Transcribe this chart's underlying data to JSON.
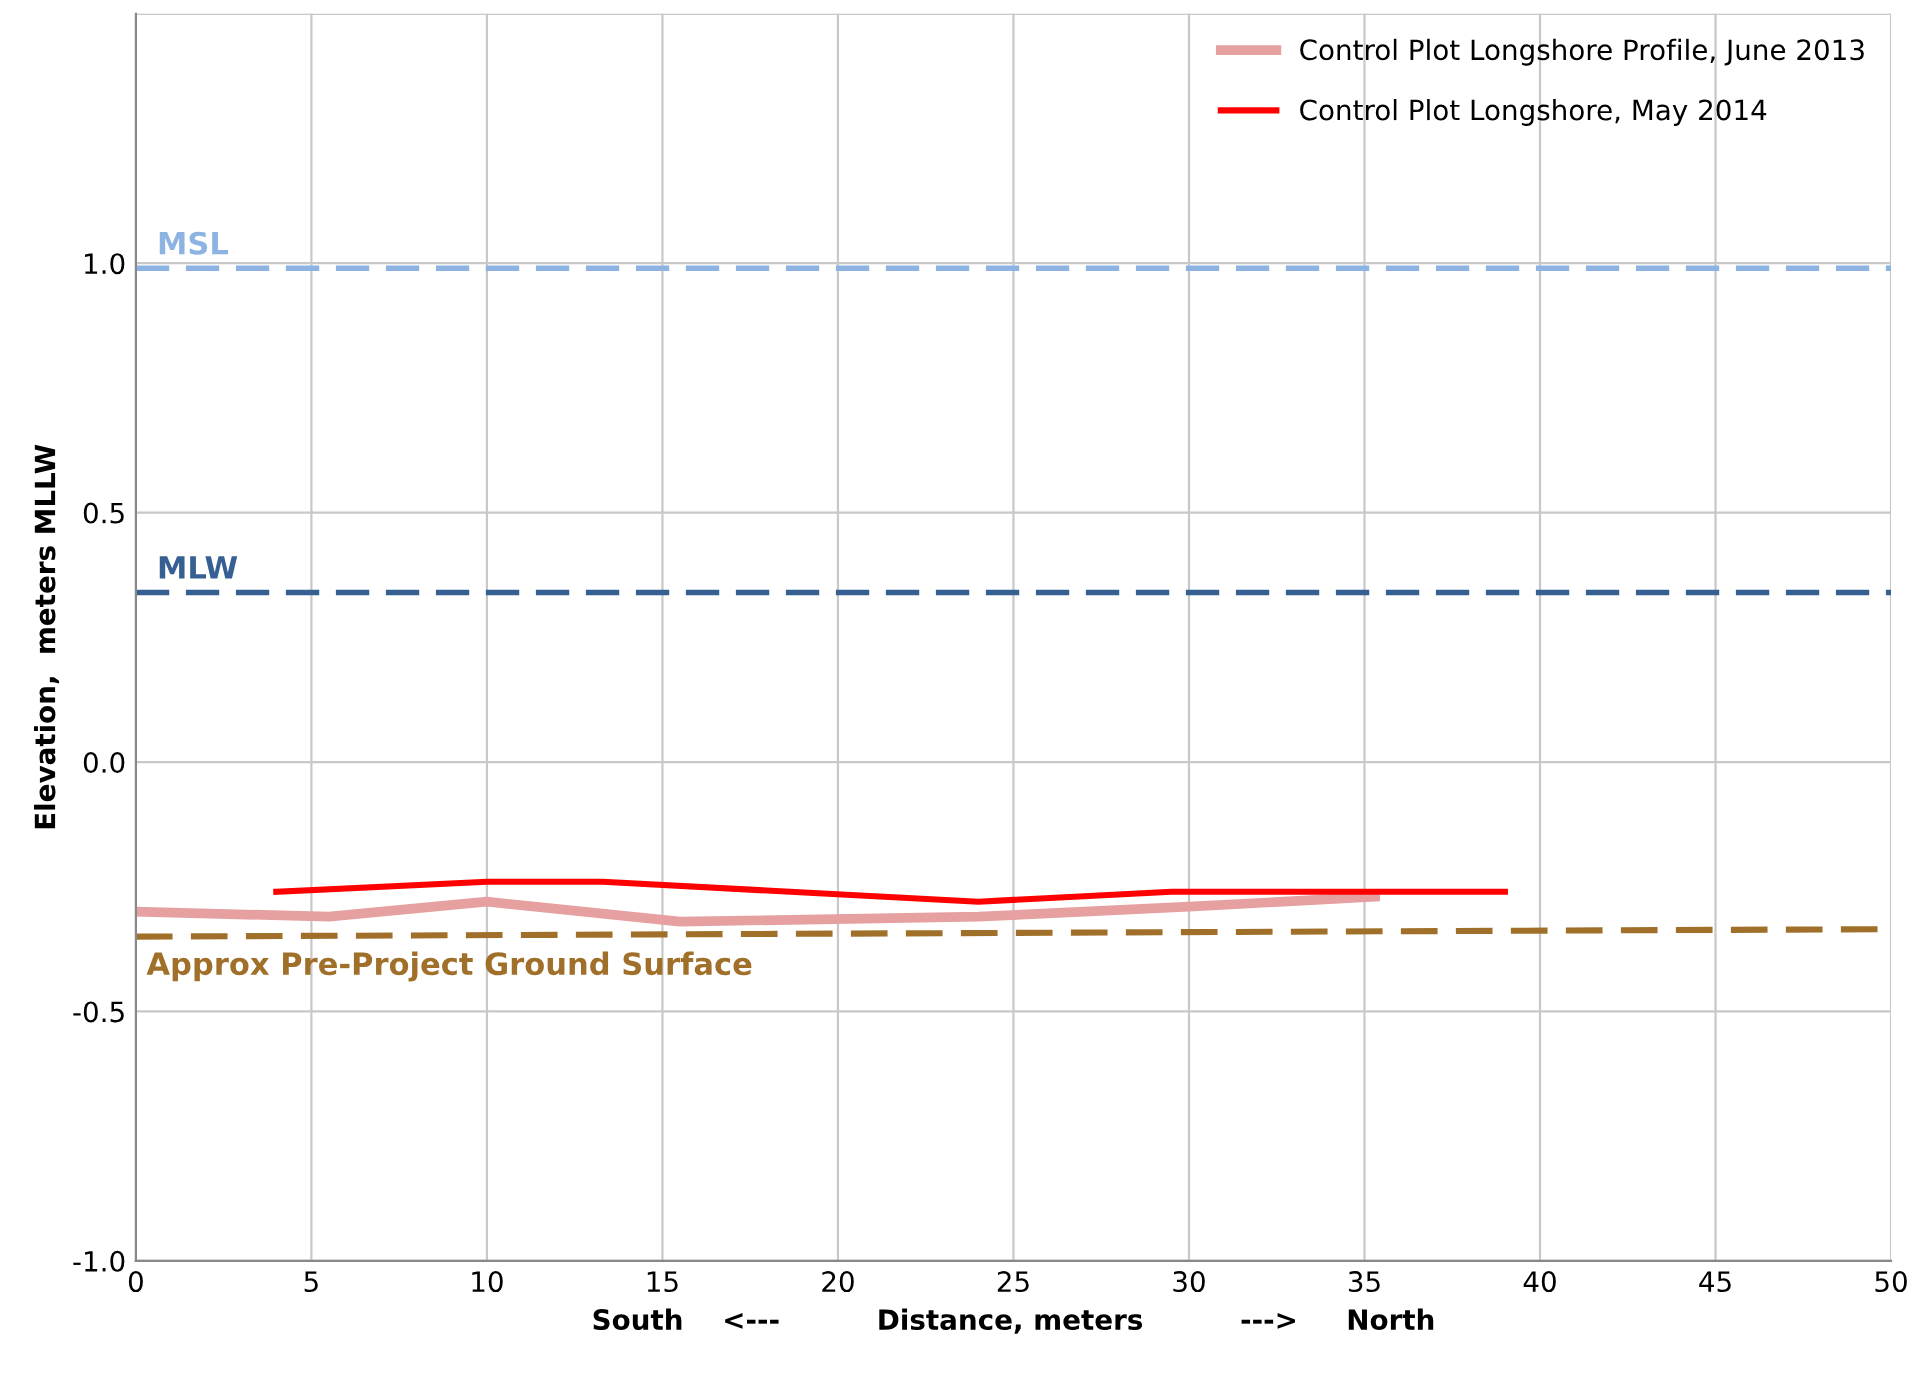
{
  "chart_data": {
    "type": "line",
    "xlabel": "South    <---          Distance, meters          --->     North",
    "ylabel": "Elevation,  meters MLLW",
    "xlim": [
      0,
      50
    ],
    "xticks": [
      0,
      5,
      10,
      15,
      20,
      25,
      30,
      35,
      40,
      45,
      50
    ],
    "ylim": [
      -1.0,
      1.5
    ],
    "yticks": [
      {
        "value": -1.0,
        "label": "-1.0"
      },
      {
        "value": -0.5,
        "label": "-0.5"
      },
      {
        "value": 0.0,
        "label": "0.0"
      },
      {
        "value": 0.5,
        "label": "0.5"
      },
      {
        "value": 1.0,
        "label": "1.0"
      },
      {
        "value": 1.5,
        "label": null
      }
    ],
    "grid": true,
    "legend": "top right",
    "marker": "none",
    "series": [
      {
        "name": "Control Plot Longshore Profile, June 2013",
        "color": "#e6a0a0",
        "x": [
          0,
          5.5,
          10,
          15.5,
          24,
          30,
          35.3
        ],
        "values": [
          -0.3,
          -0.31,
          -0.28,
          -0.32,
          -0.31,
          -0.29,
          -0.27
        ],
        "line_style": "solid"
      },
      {
        "name": "Control Plot Longshore, May 2014",
        "color": "#ff0000",
        "x": [
          4,
          10,
          13.3,
          24,
          29.5,
          39
        ],
        "values": [
          -0.26,
          -0.24,
          -0.24,
          -0.28,
          -0.26,
          -0.26
        ],
        "line_style": "solid"
      },
      {
        "name": "Approx Pre-Project Ground Surface",
        "color": "#a0702a",
        "x": [
          0,
          50
        ],
        "values": [
          -0.35,
          -0.335
        ],
        "line_style": "dashed"
      }
    ],
    "ref_lines": [
      {
        "axis": "y",
        "value": 0.99,
        "label": "MSL",
        "color": "#8db3e2",
        "line_style": "dashed"
      },
      {
        "axis": "y",
        "value": 0.34,
        "label": "MLW",
        "color": "#376092",
        "line_style": "dashed"
      }
    ]
  }
}
